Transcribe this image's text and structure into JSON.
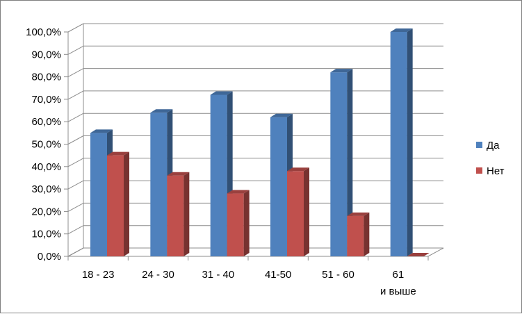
{
  "chart_data": {
    "type": "bar",
    "categories": [
      "18 - 23",
      "24 - 30",
      "31 - 40",
      "41-50",
      "51 - 60",
      "61 и выше"
    ],
    "series": [
      {
        "name": "Да",
        "color": "#4F81BD",
        "values": [
          55.0,
          64.0,
          72.0,
          62.0,
          82.0,
          100.0
        ]
      },
      {
        "name": "Нет",
        "color": "#C0504D",
        "values": [
          45.0,
          36.0,
          28.0,
          38.0,
          18.0,
          0.0
        ]
      }
    ],
    "y_ticks": [
      "0,0%",
      "10,0%",
      "20,0%",
      "30,0%",
      "40,0%",
      "50,0%",
      "60,0%",
      "70,0%",
      "80,0%",
      "90,0%",
      "100,0%"
    ],
    "ylim": [
      0,
      100
    ],
    "grid": true,
    "legend_position": "right",
    "style": "3d-clustered-column"
  }
}
